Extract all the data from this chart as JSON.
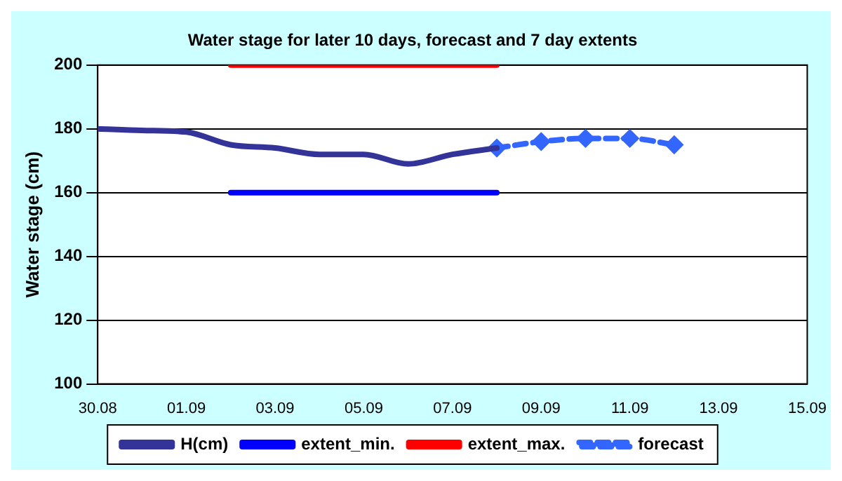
{
  "chart_data": {
    "type": "line",
    "title": "Water stage for later 10 days, forecast and 7 day extents",
    "ylabel": "Water stage (cm)",
    "series": [
      {
        "name": "H(cm)",
        "color": "#333399",
        "marker": "none",
        "line_style": "solid",
        "x": [
          "--08-30",
          "--08-31",
          "--09-01",
          "--09-02",
          "--09-03",
          "--09-04",
          "--09-05",
          "--09-06",
          "--09-07",
          "--09-08"
        ],
        "values": [
          180,
          179.5,
          179,
          175,
          174,
          172,
          172,
          169,
          172,
          174
        ]
      },
      {
        "name": "extent_min.",
        "color": "#0000ff",
        "marker": "none",
        "line_style": "solid",
        "x": [
          "--09-02",
          "--09-08"
        ],
        "values": [
          160,
          160
        ]
      },
      {
        "name": "extent_max.",
        "color": "#ff0000",
        "marker": "none",
        "line_style": "solid",
        "x": [
          "--09-02",
          "--09-08"
        ],
        "values": [
          200,
          200
        ]
      },
      {
        "name": "forecast",
        "color": "#3366ff",
        "marker": "diamond",
        "line_style": "dashed",
        "x": [
          "--09-08",
          "--09-09",
          "--09-10",
          "--09-11",
          "--09-12"
        ],
        "values": [
          174,
          176,
          177,
          177,
          175
        ]
      }
    ],
    "xlim": [
      "--08-30",
      "--09-15"
    ],
    "xticks": [
      {
        "value": "--08-30",
        "label": "30.08"
      },
      {
        "value": "--09-01",
        "label": "01.09"
      },
      {
        "value": "--09-03",
        "label": "03.09"
      },
      {
        "value": "--09-05",
        "label": "05.09"
      },
      {
        "value": "--09-07",
        "label": "07.09"
      },
      {
        "value": "--09-09",
        "label": "09.09"
      },
      {
        "value": "--09-11",
        "label": "11.09"
      },
      {
        "value": "--09-13",
        "label": "13.09"
      },
      {
        "value": "--09-15",
        "label": "15.09"
      }
    ],
    "ylim": [
      100,
      200
    ],
    "yticks": [
      100,
      120,
      140,
      160,
      180,
      200
    ],
    "grid": "y",
    "legend": "bottom"
  }
}
